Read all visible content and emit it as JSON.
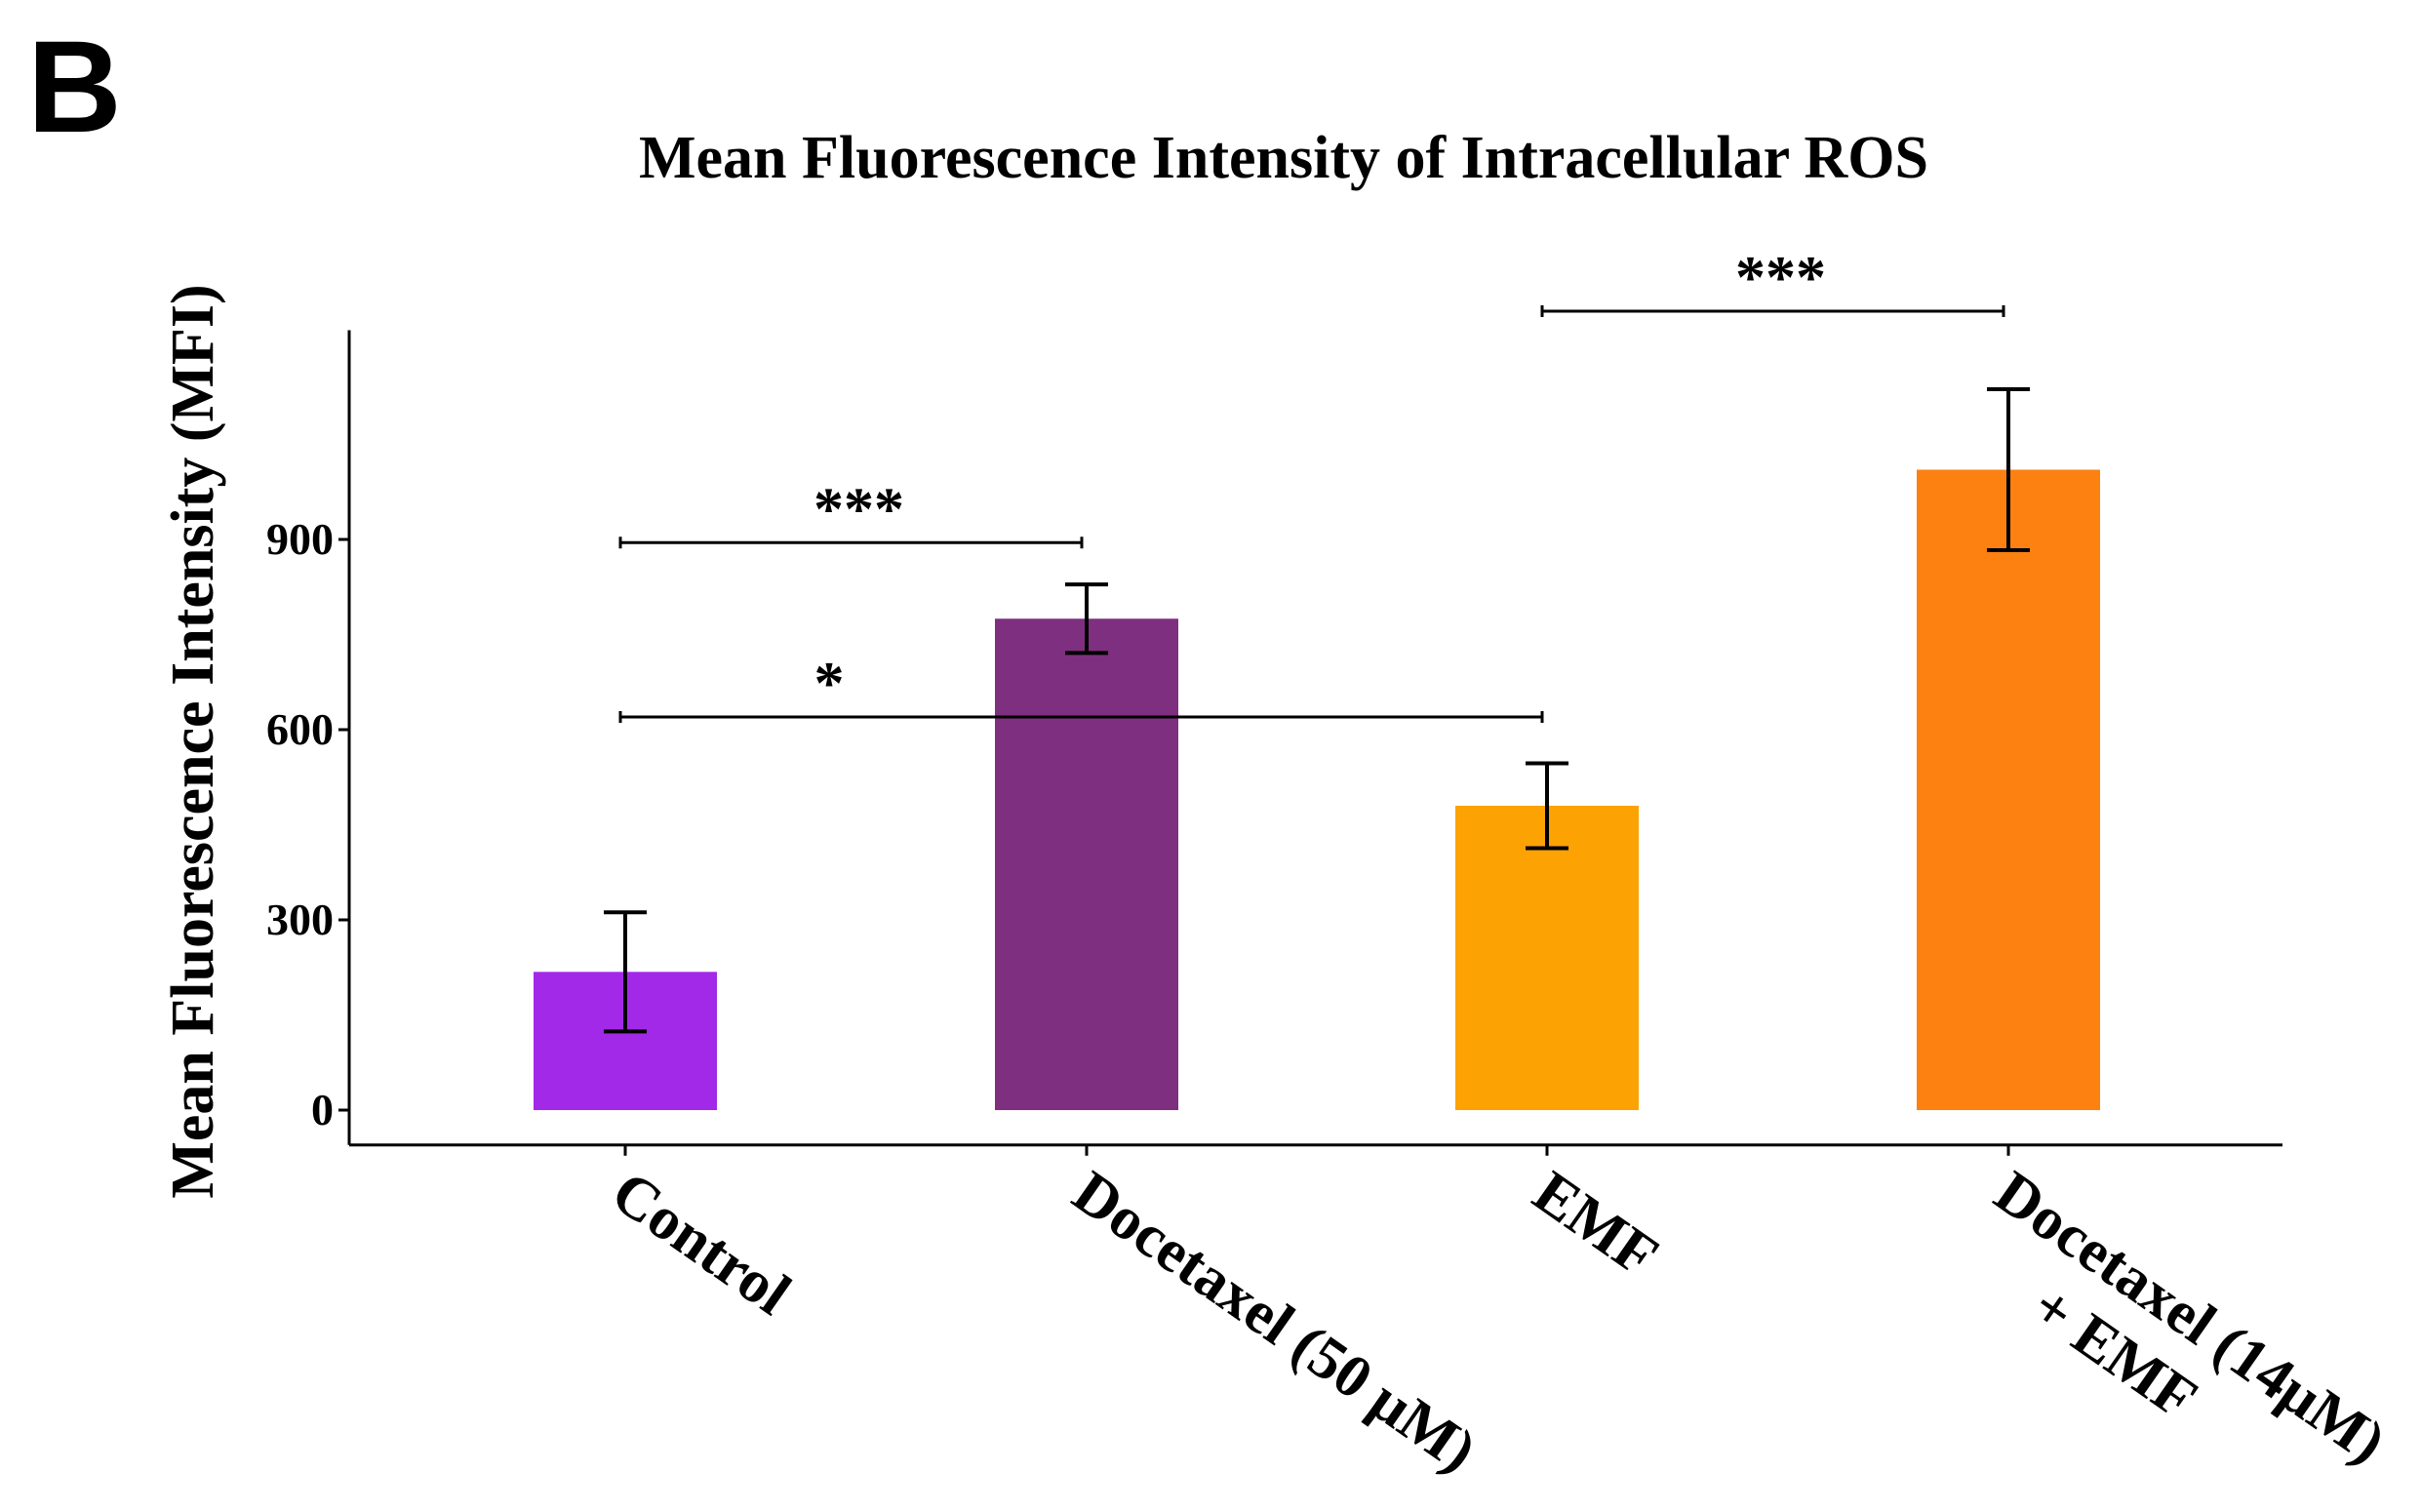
{
  "panel_label": "B",
  "chart_data": {
    "type": "bar",
    "title": "Mean Fluorescence Intensity of Intracellular ROS",
    "xlabel": "",
    "ylabel": "Mean Fluorescence Intensity (MFI)",
    "ylim": [
      -55,
      1230
    ],
    "yticks": [
      0,
      300,
      600,
      900
    ],
    "grid": false,
    "legend": "none",
    "categories": [
      {
        "lines": [
          "Control"
        ]
      },
      {
        "lines": [
          "Docetaxel (50 μM)"
        ]
      },
      {
        "lines": [
          "EMF"
        ]
      },
      {
        "lines": [
          "Docetaxel (14μM)",
          "+ EMF"
        ]
      }
    ],
    "values": [
      218,
      775,
      480,
      1010
    ],
    "errors": [
      94,
      54,
      67,
      127
    ],
    "colors": [
      "#A229E7",
      "#7F2F80",
      "#FDA203",
      "#FC8110"
    ],
    "significance": [
      {
        "from": 0,
        "to": 1,
        "y": 895,
        "label": "***"
      },
      {
        "from": 0,
        "to": 2,
        "y": 620,
        "label": "*"
      },
      {
        "from": 2,
        "to": 3,
        "y": 1260,
        "label": "***"
      }
    ]
  }
}
